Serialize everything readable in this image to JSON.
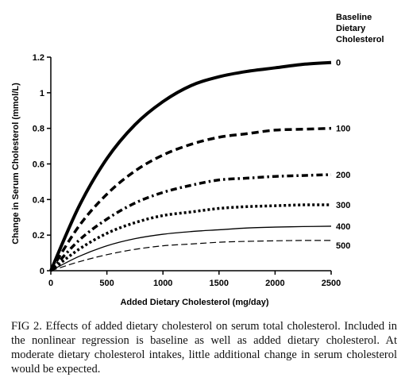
{
  "chart_data": {
    "type": "line",
    "xlabel": "Added Dietary Cholesterol (mg/day)",
    "ylabel": "Change in Serum Cholesterol (mmol/L)",
    "xlim": [
      0,
      2500
    ],
    "ylim": [
      0,
      1.2
    ],
    "x_ticks": [
      "0",
      "500",
      "1000",
      "1500",
      "2000",
      "2500"
    ],
    "y_ticks": [
      "0",
      "0.2",
      "0.4",
      "0.6",
      "0.8",
      "1",
      "1.2"
    ],
    "legend_title": [
      "Baseline",
      "Dietary",
      "Cholesterol"
    ],
    "legend_placement": "right, labels at line ends",
    "grid": false,
    "x": [
      0,
      250,
      500,
      750,
      1000,
      1250,
      1500,
      1750,
      2000,
      2250,
      2500
    ],
    "series": [
      {
        "name": "0",
        "style": "thick-solid",
        "values": [
          0.0,
          0.36,
          0.63,
          0.82,
          0.95,
          1.04,
          1.09,
          1.12,
          1.14,
          1.16,
          1.17
        ]
      },
      {
        "name": "100",
        "style": "thick-dash",
        "values": [
          0.0,
          0.25,
          0.43,
          0.56,
          0.65,
          0.71,
          0.75,
          0.77,
          0.79,
          0.795,
          0.8
        ]
      },
      {
        "name": "200",
        "style": "dash-dot",
        "values": [
          0.0,
          0.17,
          0.29,
          0.38,
          0.44,
          0.48,
          0.51,
          0.52,
          0.53,
          0.535,
          0.54
        ]
      },
      {
        "name": "300",
        "style": "dotted",
        "values": [
          0.0,
          0.12,
          0.21,
          0.27,
          0.31,
          0.33,
          0.35,
          0.36,
          0.365,
          0.37,
          0.37
        ]
      },
      {
        "name": "400",
        "style": "thin-solid",
        "values": [
          0.0,
          0.08,
          0.14,
          0.18,
          0.205,
          0.22,
          0.23,
          0.24,
          0.245,
          0.248,
          0.25
        ]
      },
      {
        "name": "500",
        "style": "thin-dash",
        "values": [
          0.0,
          0.05,
          0.09,
          0.12,
          0.14,
          0.15,
          0.16,
          0.165,
          0.168,
          0.17,
          0.17
        ]
      }
    ]
  },
  "caption": "FIG 2. Effects of added dietary cholesterol on serum total cholesterol. Included in the nonlinear regression is baseline as well as added dietary cholesterol. At moderate dietary cholesterol intakes, little additional change in serum cholesterol would be expected."
}
